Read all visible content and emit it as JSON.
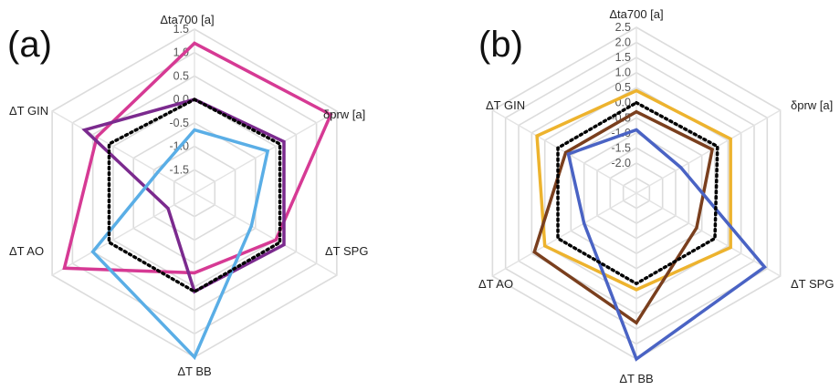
{
  "chart_data": [
    {
      "type": "radar",
      "panel_label": "(a)",
      "axes": [
        "Δta700 [a]",
        "δprw [a]",
        "ΔT SPG",
        "ΔT BB",
        "ΔT AO",
        "ΔT GIN"
      ],
      "ticks": [
        "1.5",
        "1.0",
        "0.5",
        "0.0",
        "-0.5",
        "-1.0",
        "-1.5"
      ],
      "tick_values": [
        1.5,
        1.0,
        0.5,
        0.0,
        -0.5,
        -1.0,
        -1.5
      ],
      "rmin": -2.0,
      "rmax": 1.5,
      "grid": true,
      "series": [
        {
          "color": "#D63A94",
          "style": "solid",
          "values": [
            1.2,
            1.35,
            0.0,
            -0.3,
            1.2,
            0.4
          ]
        },
        {
          "color": "#7B2A8E",
          "style": "solid",
          "values": [
            0.0,
            0.2,
            0.2,
            0.1,
            -1.35,
            0.7
          ]
        },
        {
          "color": "#5AAEE6",
          "style": "solid",
          "values": [
            -0.65,
            -0.2,
            -0.6,
            1.5,
            0.5,
            -1.1
          ]
        },
        {
          "color": "#000000",
          "style": "dotted",
          "values": [
            0.0,
            0.1,
            0.1,
            0.1,
            0.1,
            0.1
          ]
        }
      ]
    },
    {
      "type": "radar",
      "panel_label": "(b)",
      "axes": [
        "Δta700 [a]",
        "δprw [a]",
        "ΔT SPG",
        "ΔT BB",
        "ΔT AO",
        "ΔT GIN"
      ],
      "ticks": [
        "2.5",
        "2.0",
        "1.5",
        "1.0",
        "0.5",
        "0.0",
        "-0.5",
        "-1.0",
        "-1.5",
        "-2.0"
      ],
      "tick_values": [
        2.5,
        2.0,
        1.5,
        1.0,
        0.5,
        0.0,
        -0.5,
        -1.0,
        -1.5,
        -2.0
      ],
      "rmin": -3.0,
      "rmax": 2.5,
      "grid": true,
      "series": [
        {
          "color": "#EDB32E",
          "style": "solid",
          "values": [
            0.4,
            0.6,
            0.6,
            0.2,
            0.5,
            0.8
          ]
        },
        {
          "color": "#7A3F1E",
          "style": "solid",
          "values": [
            -0.3,
            -0.1,
            -0.7,
            1.3,
            0.9,
            -0.3
          ]
        },
        {
          "color": "#4A63C4",
          "style": "solid",
          "values": [
            -0.9,
            -1.3,
            1.9,
            2.5,
            -1.0,
            -0.4
          ]
        },
        {
          "color": "#000000",
          "style": "dotted",
          "values": [
            0.0,
            0.1,
            0.0,
            0.0,
            0.0,
            0.0
          ]
        }
      ]
    }
  ]
}
